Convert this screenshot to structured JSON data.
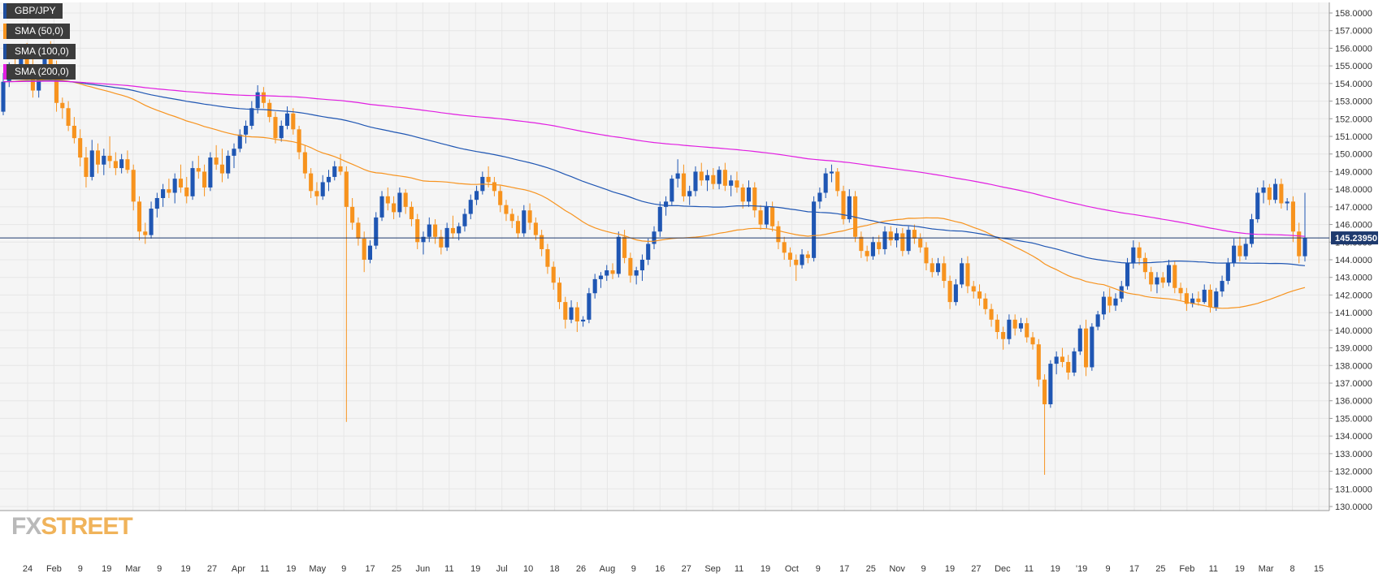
{
  "instrument": "GBP/JPY",
  "legend": [
    {
      "label": "GBP/JPY",
      "color": "#1f4e9e"
    },
    {
      "label": "SMA (50,0)",
      "color": "#f7931e"
    },
    {
      "label": "SMA (100,0)",
      "color": "#1f4e9e"
    },
    {
      "label": "SMA (200,0)",
      "color": "#e11ee1"
    }
  ],
  "watermark": {
    "part1": "FX",
    "part2": "STREET"
  },
  "colors": {
    "bull": "#1f56b3",
    "bear": "#f7931e",
    "sma50": "#f7931e",
    "sma100": "#1f56b3",
    "sma200": "#e11ee1",
    "last_price_line": "#1e3a6e",
    "grid": "#e6e6e6",
    "plot_bg": "#f5f5f5"
  },
  "chart_data": {
    "type": "candlestick",
    "last_price": "145.23950",
    "y_range": [
      130,
      158
    ],
    "y_ticks": [
      "158.0000",
      "157.0000",
      "156.0000",
      "155.0000",
      "154.0000",
      "153.0000",
      "152.0000",
      "151.0000",
      "150.0000",
      "149.0000",
      "148.0000",
      "147.0000",
      "146.0000",
      "145.0000",
      "144.0000",
      "143.0000",
      "142.0000",
      "141.0000",
      "140.0000",
      "139.0000",
      "138.0000",
      "137.0000",
      "136.0000",
      "135.0000",
      "134.0000",
      "133.0000",
      "132.0000",
      "131.0000",
      "130.0000"
    ],
    "x_ticks": [
      "24",
      "Feb",
      "9",
      "19",
      "Mar",
      "9",
      "19",
      "27",
      "Apr",
      "11",
      "19",
      "May",
      "9",
      "17",
      "25",
      "Jun",
      "11",
      "19",
      "Jul",
      "10",
      "18",
      "26",
      "Aug",
      "9",
      "16",
      "27",
      "Sep",
      "11",
      "19",
      "Oct",
      "9",
      "17",
      "25",
      "Nov",
      "9",
      "19",
      "27",
      "Dec",
      "11",
      "19",
      "'19",
      "9",
      "17",
      "25",
      "Feb",
      "11",
      "19",
      "Mar",
      "8",
      "15"
    ],
    "ohlc": [
      [
        152.4,
        154.6,
        152.2,
        154.1
      ],
      [
        154.1,
        155.2,
        153.8,
        154.9
      ],
      [
        154.9,
        155.6,
        154.3,
        154.6
      ],
      [
        154.6,
        156.1,
        154.4,
        155.7
      ],
      [
        155.7,
        156.3,
        154.9,
        155.1
      ],
      [
        155.1,
        155.8,
        153.2,
        153.6
      ],
      [
        153.6,
        155.0,
        153.2,
        154.8
      ],
      [
        154.8,
        156.2,
        154.6,
        155.9
      ],
      [
        155.9,
        156.4,
        154.7,
        154.9
      ],
      [
        154.9,
        155.3,
        152.4,
        152.9
      ],
      [
        152.9,
        153.2,
        152.0,
        152.6
      ],
      [
        152.6,
        153.0,
        151.3,
        151.6
      ],
      [
        151.6,
        152.1,
        150.6,
        150.9
      ],
      [
        150.9,
        151.4,
        149.3,
        149.8
      ],
      [
        149.8,
        150.4,
        148.1,
        148.7
      ],
      [
        148.7,
        150.8,
        148.5,
        150.2
      ],
      [
        150.2,
        150.6,
        148.9,
        149.4
      ],
      [
        149.4,
        150.3,
        148.8,
        149.9
      ],
      [
        149.9,
        151.0,
        149.2,
        149.6
      ],
      [
        149.6,
        150.1,
        148.8,
        149.2
      ],
      [
        149.2,
        150.0,
        148.9,
        149.7
      ],
      [
        149.7,
        150.2,
        148.9,
        149.1
      ],
      [
        149.1,
        149.4,
        146.8,
        147.3
      ],
      [
        147.3,
        147.6,
        145.1,
        145.6
      ],
      [
        145.6,
        146.1,
        144.9,
        145.4
      ],
      [
        145.4,
        147.3,
        145.2,
        146.9
      ],
      [
        146.9,
        147.8,
        146.4,
        147.5
      ],
      [
        147.5,
        148.3,
        147.0,
        148.0
      ],
      [
        148.0,
        148.6,
        147.5,
        147.8
      ],
      [
        147.8,
        148.9,
        147.2,
        148.6
      ],
      [
        148.6,
        149.4,
        147.8,
        148.1
      ],
      [
        148.1,
        148.7,
        147.2,
        147.6
      ],
      [
        147.6,
        149.6,
        147.4,
        149.2
      ],
      [
        149.2,
        149.9,
        148.6,
        149.0
      ],
      [
        149.0,
        149.4,
        147.6,
        148.1
      ],
      [
        148.1,
        150.1,
        147.9,
        149.8
      ],
      [
        149.8,
        150.5,
        149.1,
        149.4
      ],
      [
        149.4,
        150.3,
        148.4,
        148.9
      ],
      [
        148.9,
        150.2,
        148.6,
        149.9
      ],
      [
        149.9,
        150.6,
        149.2,
        150.3
      ],
      [
        150.3,
        151.4,
        150.1,
        151.1
      ],
      [
        151.1,
        151.9,
        150.6,
        151.6
      ],
      [
        151.6,
        153.0,
        151.4,
        152.6
      ],
      [
        152.6,
        153.9,
        152.3,
        153.5
      ],
      [
        153.5,
        153.8,
        152.6,
        152.9
      ],
      [
        152.9,
        153.1,
        151.8,
        152.1
      ],
      [
        152.1,
        152.4,
        150.6,
        150.9
      ],
      [
        150.9,
        151.9,
        150.7,
        151.6
      ],
      [
        151.6,
        152.7,
        151.4,
        152.3
      ],
      [
        152.3,
        152.6,
        151.1,
        151.4
      ],
      [
        151.4,
        151.6,
        149.7,
        150.1
      ],
      [
        150.1,
        150.5,
        148.6,
        148.9
      ],
      [
        148.9,
        149.2,
        147.5,
        147.9
      ],
      [
        147.9,
        148.4,
        147.1,
        147.6
      ],
      [
        147.6,
        148.8,
        147.4,
        148.4
      ],
      [
        148.4,
        149.1,
        147.9,
        148.7
      ],
      [
        148.7,
        149.6,
        148.5,
        149.3
      ],
      [
        149.3,
        150.0,
        148.8,
        149.0
      ],
      [
        149.0,
        149.3,
        134.8,
        147.0
      ],
      [
        147.0,
        147.5,
        145.7,
        146.1
      ],
      [
        146.1,
        146.4,
        144.8,
        145.2
      ],
      [
        145.2,
        145.6,
        143.3,
        144.0
      ],
      [
        144.0,
        145.1,
        143.8,
        144.8
      ],
      [
        144.8,
        146.7,
        144.6,
        146.4
      ],
      [
        146.4,
        147.9,
        146.2,
        147.6
      ],
      [
        147.6,
        148.1,
        146.8,
        147.2
      ],
      [
        147.2,
        147.6,
        146.3,
        146.7
      ],
      [
        146.7,
        148.1,
        146.4,
        147.8
      ],
      [
        147.8,
        148.0,
        146.6,
        147.0
      ],
      [
        147.0,
        147.3,
        145.9,
        146.3
      ],
      [
        146.3,
        146.6,
        144.6,
        145.0
      ],
      [
        145.0,
        145.6,
        144.3,
        145.3
      ],
      [
        145.3,
        146.4,
        145.0,
        146.0
      ],
      [
        146.0,
        146.3,
        144.9,
        145.3
      ],
      [
        145.3,
        145.7,
        144.3,
        144.7
      ],
      [
        144.7,
        146.1,
        144.5,
        145.8
      ],
      [
        145.8,
        146.5,
        145.2,
        145.5
      ],
      [
        145.5,
        146.1,
        145.1,
        145.9
      ],
      [
        145.9,
        146.9,
        145.6,
        146.6
      ],
      [
        146.6,
        147.7,
        146.3,
        147.4
      ],
      [
        147.4,
        148.2,
        147.1,
        147.9
      ],
      [
        147.9,
        149.0,
        147.7,
        148.7
      ],
      [
        148.7,
        149.3,
        148.1,
        148.4
      ],
      [
        148.4,
        148.7,
        147.6,
        147.9
      ],
      [
        147.9,
        148.2,
        146.7,
        147.1
      ],
      [
        147.1,
        147.4,
        146.2,
        146.6
      ],
      [
        146.6,
        146.9,
        145.8,
        146.2
      ],
      [
        146.2,
        146.5,
        145.2,
        145.5
      ],
      [
        145.5,
        147.1,
        145.3,
        146.8
      ],
      [
        146.8,
        147.2,
        145.7,
        146.1
      ],
      [
        146.1,
        146.4,
        145.1,
        145.4
      ],
      [
        145.4,
        145.7,
        144.2,
        144.6
      ],
      [
        144.6,
        144.9,
        143.2,
        143.6
      ],
      [
        143.6,
        143.9,
        142.3,
        142.7
      ],
      [
        142.7,
        143.0,
        141.2,
        141.6
      ],
      [
        141.6,
        141.9,
        140.1,
        140.6
      ],
      [
        140.6,
        141.7,
        140.4,
        141.3
      ],
      [
        141.3,
        141.6,
        139.9,
        140.5
      ],
      [
        140.5,
        140.8,
        140.2,
        140.6
      ],
      [
        140.6,
        142.4,
        140.4,
        142.1
      ],
      [
        142.1,
        143.2,
        141.8,
        142.9
      ],
      [
        142.9,
        143.3,
        142.4,
        143.1
      ],
      [
        143.1,
        143.7,
        142.8,
        143.4
      ],
      [
        143.4,
        143.8,
        142.9,
        143.2
      ],
      [
        143.2,
        145.6,
        143.0,
        145.3
      ],
      [
        145.3,
        145.7,
        143.8,
        144.1
      ],
      [
        144.1,
        144.4,
        142.7,
        143.1
      ],
      [
        143.1,
        143.6,
        142.6,
        143.4
      ],
      [
        143.4,
        144.3,
        142.8,
        144.0
      ],
      [
        144.0,
        145.2,
        143.7,
        144.9
      ],
      [
        144.9,
        145.9,
        144.6,
        145.6
      ],
      [
        145.6,
        147.3,
        145.3,
        147.0
      ],
      [
        147.0,
        147.6,
        146.5,
        147.3
      ],
      [
        147.3,
        148.8,
        147.1,
        148.6
      ],
      [
        148.6,
        149.7,
        148.1,
        148.9
      ],
      [
        148.9,
        149.4,
        147.3,
        147.6
      ],
      [
        147.6,
        148.2,
        147.1,
        147.9
      ],
      [
        147.9,
        149.3,
        147.6,
        149.0
      ],
      [
        149.0,
        149.5,
        148.2,
        148.5
      ],
      [
        148.5,
        149.1,
        147.9,
        148.8
      ],
      [
        148.8,
        149.2,
        148.0,
        148.3
      ],
      [
        148.3,
        149.3,
        148.0,
        149.1
      ],
      [
        149.1,
        149.5,
        147.9,
        148.2
      ],
      [
        148.2,
        148.8,
        147.6,
        148.5
      ],
      [
        148.5,
        149.0,
        147.8,
        148.1
      ],
      [
        148.1,
        148.3,
        146.9,
        147.3
      ],
      [
        147.3,
        148.5,
        147.0,
        148.1
      ],
      [
        148.1,
        148.4,
        146.4,
        146.8
      ],
      [
        146.8,
        147.1,
        145.7,
        146.0
      ],
      [
        146.0,
        147.3,
        145.8,
        147.0
      ],
      [
        147.0,
        147.3,
        145.6,
        145.9
      ],
      [
        145.9,
        146.2,
        144.6,
        145.0
      ],
      [
        145.0,
        145.3,
        144.0,
        144.4
      ],
      [
        144.4,
        144.7,
        143.6,
        144.0
      ],
      [
        144.0,
        144.3,
        142.8,
        143.7
      ],
      [
        143.7,
        144.6,
        143.5,
        144.3
      ],
      [
        144.3,
        144.5,
        143.8,
        144.1
      ],
      [
        144.1,
        147.6,
        143.9,
        147.3
      ],
      [
        147.3,
        148.1,
        146.9,
        147.8
      ],
      [
        147.8,
        149.2,
        147.5,
        148.9
      ],
      [
        148.9,
        149.4,
        148.4,
        149.0
      ],
      [
        149.0,
        149.2,
        147.6,
        147.9
      ],
      [
        147.9,
        148.2,
        146.0,
        146.3
      ],
      [
        146.3,
        148.0,
        146.1,
        147.6
      ],
      [
        147.6,
        147.9,
        145.0,
        145.3
      ],
      [
        145.3,
        145.6,
        144.1,
        144.5
      ],
      [
        144.5,
        144.8,
        143.9,
        144.2
      ],
      [
        144.2,
        145.3,
        144.0,
        145.0
      ],
      [
        145.0,
        145.4,
        144.3,
        144.6
      ],
      [
        144.6,
        145.9,
        144.3,
        145.6
      ],
      [
        145.6,
        145.9,
        144.8,
        145.1
      ],
      [
        145.1,
        145.8,
        144.7,
        145.5
      ],
      [
        145.5,
        145.8,
        144.2,
        144.5
      ],
      [
        144.5,
        145.9,
        144.3,
        145.7
      ],
      [
        145.7,
        146.0,
        144.9,
        145.2
      ],
      [
        145.2,
        145.5,
        144.4,
        144.7
      ],
      [
        144.7,
        145.0,
        143.4,
        143.8
      ],
      [
        143.8,
        144.1,
        143.0,
        143.3
      ],
      [
        143.3,
        144.1,
        143.1,
        143.8
      ],
      [
        143.8,
        144.2,
        142.4,
        142.8
      ],
      [
        142.8,
        143.1,
        141.2,
        141.6
      ],
      [
        141.6,
        142.9,
        141.4,
        142.6
      ],
      [
        142.6,
        144.1,
        142.4,
        143.8
      ],
      [
        143.8,
        144.2,
        142.1,
        142.5
      ],
      [
        142.5,
        142.8,
        141.8,
        142.2
      ],
      [
        142.2,
        142.6,
        141.4,
        141.8
      ],
      [
        141.8,
        142.1,
        140.9,
        141.2
      ],
      [
        141.2,
        141.5,
        140.2,
        140.6
      ],
      [
        140.6,
        140.9,
        139.5,
        139.9
      ],
      [
        139.9,
        140.2,
        138.9,
        139.5
      ],
      [
        139.5,
        140.9,
        139.2,
        140.6
      ],
      [
        140.6,
        140.9,
        139.7,
        140.1
      ],
      [
        140.1,
        140.7,
        139.9,
        140.4
      ],
      [
        140.4,
        140.7,
        139.3,
        139.6
      ],
      [
        139.6,
        139.9,
        138.9,
        139.2
      ],
      [
        139.2,
        139.5,
        136.8,
        137.2
      ],
      [
        137.2,
        137.5,
        131.8,
        135.8
      ],
      [
        135.8,
        138.3,
        135.6,
        138.1
      ],
      [
        138.1,
        138.8,
        137.5,
        138.5
      ],
      [
        138.5,
        139.0,
        137.9,
        138.2
      ],
      [
        138.2,
        138.6,
        137.2,
        137.6
      ],
      [
        137.6,
        139.0,
        137.4,
        138.8
      ],
      [
        138.8,
        140.3,
        138.6,
        140.1
      ],
      [
        140.1,
        140.6,
        137.4,
        137.9
      ],
      [
        137.9,
        140.4,
        137.7,
        140.2
      ],
      [
        140.2,
        141.1,
        140.0,
        140.9
      ],
      [
        140.9,
        142.2,
        140.6,
        141.9
      ],
      [
        141.9,
        142.4,
        141.0,
        141.4
      ],
      [
        141.4,
        142.1,
        141.1,
        141.8
      ],
      [
        141.8,
        142.8,
        141.6,
        142.5
      ],
      [
        142.5,
        144.1,
        142.3,
        143.8
      ],
      [
        143.8,
        145.1,
        143.5,
        144.7
      ],
      [
        144.7,
        145.0,
        143.7,
        144.1
      ],
      [
        144.1,
        144.4,
        142.9,
        143.3
      ],
      [
        143.3,
        143.6,
        142.2,
        142.6
      ],
      [
        142.6,
        143.3,
        142.1,
        143.0
      ],
      [
        143.0,
        143.3,
        142.4,
        142.7
      ],
      [
        142.7,
        144.0,
        142.5,
        143.7
      ],
      [
        143.7,
        143.9,
        142.1,
        142.4
      ],
      [
        142.4,
        142.7,
        141.7,
        142.1
      ],
      [
        142.1,
        142.4,
        141.1,
        141.5
      ],
      [
        141.5,
        142.1,
        141.3,
        141.8
      ],
      [
        141.8,
        142.2,
        141.4,
        141.6
      ],
      [
        141.6,
        142.6,
        141.5,
        142.3
      ],
      [
        142.3,
        142.6,
        141.0,
        141.3
      ],
      [
        141.3,
        142.4,
        141.1,
        142.2
      ],
      [
        142.2,
        143.1,
        141.9,
        142.8
      ],
      [
        142.8,
        144.1,
        142.6,
        143.8
      ],
      [
        143.8,
        145.2,
        143.6,
        144.8
      ],
      [
        144.8,
        145.3,
        143.9,
        144.2
      ],
      [
        144.2,
        145.2,
        144.0,
        144.9
      ],
      [
        144.9,
        146.6,
        144.7,
        146.3
      ],
      [
        146.3,
        148.1,
        146.1,
        147.8
      ],
      [
        147.8,
        148.5,
        147.2,
        148.1
      ],
      [
        148.1,
        148.3,
        147.1,
        147.4
      ],
      [
        147.4,
        148.6,
        147.2,
        148.3
      ],
      [
        148.3,
        148.6,
        146.9,
        147.2
      ],
      [
        147.2,
        147.5,
        146.8,
        147.3
      ],
      [
        147.3,
        147.6,
        145.0,
        145.6
      ],
      [
        145.6,
        146.1,
        143.8,
        144.2
      ],
      [
        144.2,
        147.8,
        143.9,
        145.24
      ]
    ]
  }
}
